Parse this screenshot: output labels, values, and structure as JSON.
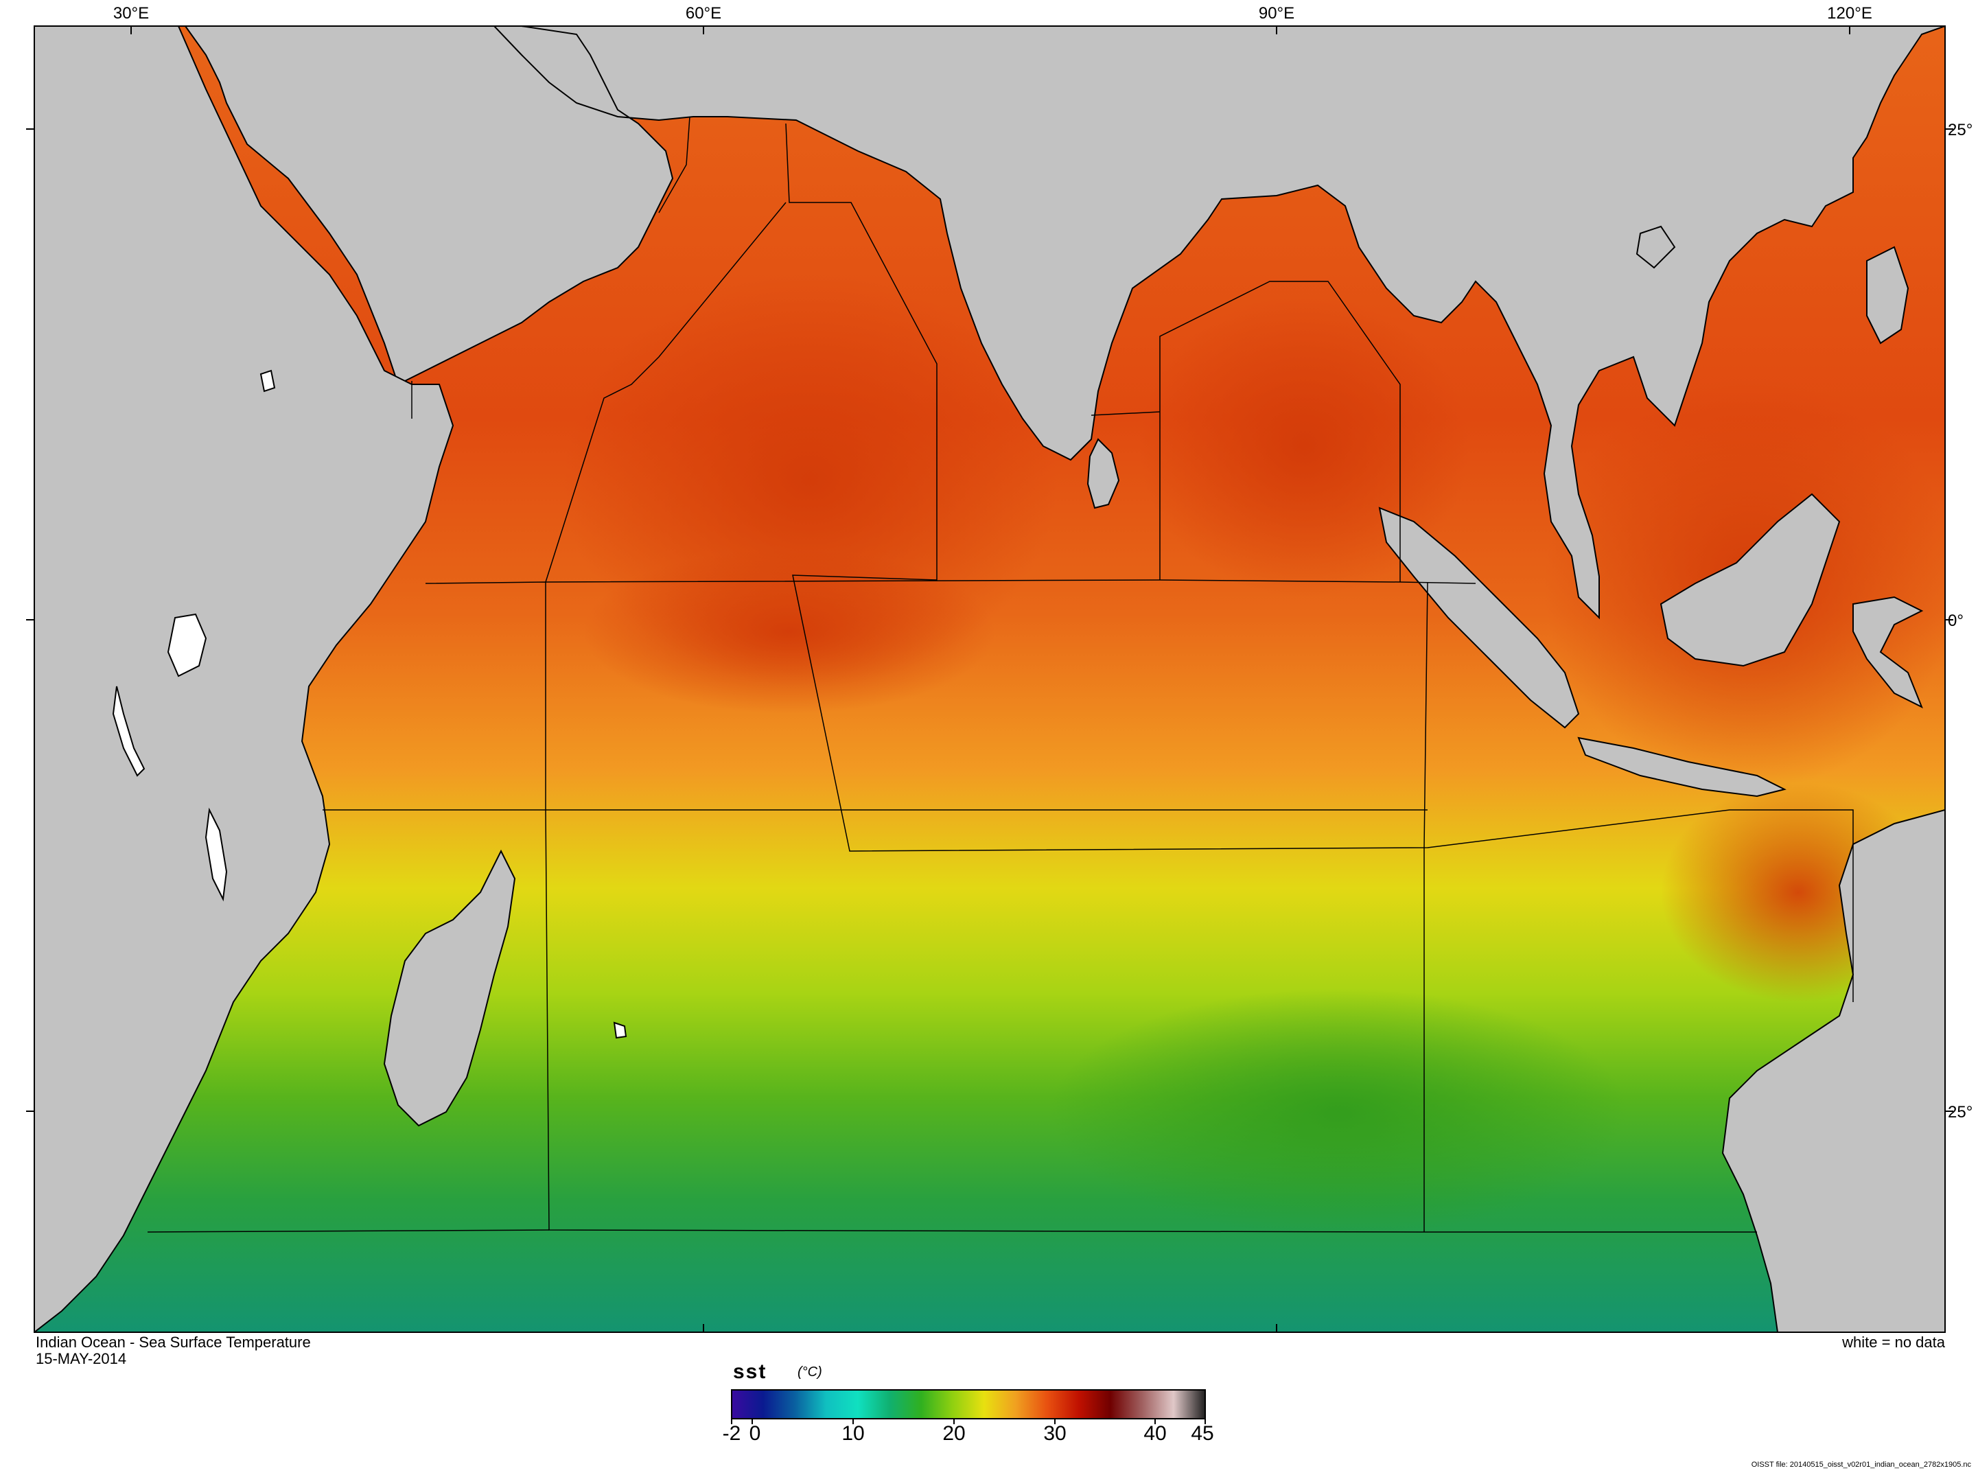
{
  "map": {
    "title": "Indian Ocean - Sea Surface Temperature",
    "date": "15-MAY-2014",
    "no_data_note": "white = no data",
    "file_note": "OISST file: 20140515_oisst_v02r01_indian_ocean_2782x1905.nc",
    "lon_labels": [
      "30°E",
      "60°E",
      "90°E",
      "120°E"
    ],
    "lat_labels": [
      "25°",
      "0°",
      "25°"
    ],
    "land_color": "#c2c2c2",
    "nodata_color": "#ffffff"
  },
  "colorbar": {
    "variable": "sst",
    "units": "(°C)",
    "ticks": [
      "-2",
      "0",
      "10",
      "20",
      "30",
      "40",
      "45"
    ],
    "range": [
      -2,
      45
    ],
    "colors": [
      "#3a0aa0",
      "#0a1a90",
      "#0a60a0",
      "#10c0c0",
      "#10e0c0",
      "#10b070",
      "#30b020",
      "#90d010",
      "#e8e010",
      "#f0a020",
      "#e85010",
      "#c01000",
      "#700000",
      "#a06060",
      "#e0c8c8",
      "#202020"
    ]
  }
}
